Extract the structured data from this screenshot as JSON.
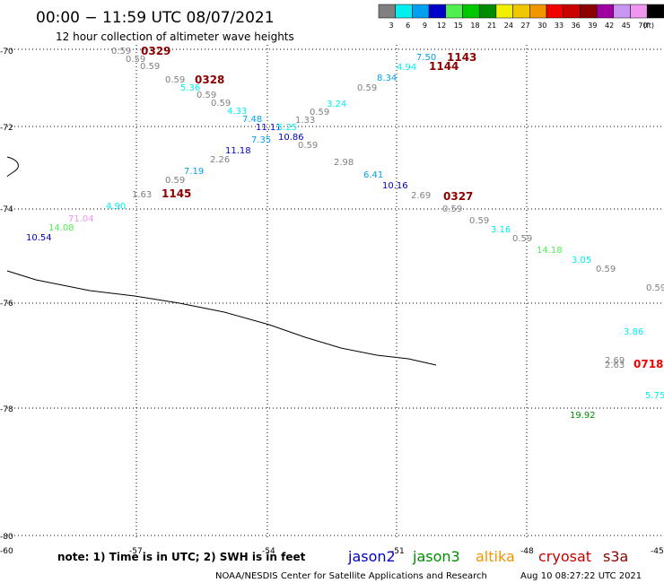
{
  "header": {
    "title": "00:00 − 11:59 UTC 08/07/2021",
    "subtitle": "12 hour collection of altimeter wave heights"
  },
  "legend": {
    "bins": [
      {
        "label": "3",
        "color": "#808080"
      },
      {
        "label": "6",
        "color": "#00f0f0"
      },
      {
        "label": "9",
        "color": "#00a0f0"
      },
      {
        "label": "12",
        "color": "#0000c8"
      },
      {
        "label": "15",
        "color": "#50f050"
      },
      {
        "label": "18",
        "color": "#00c800"
      },
      {
        "label": "21",
        "color": "#008c00"
      },
      {
        "label": "24",
        "color": "#f0f000"
      },
      {
        "label": "27",
        "color": "#f0c800"
      },
      {
        "label": "30",
        "color": "#f09600"
      },
      {
        "label": "33",
        "color": "#f00000"
      },
      {
        "label": "36",
        "color": "#c80000"
      },
      {
        "label": "39",
        "color": "#8c0000"
      },
      {
        "label": "42",
        "color": "#a000a0"
      },
      {
        "label": "45",
        "color": "#c896f0"
      },
      {
        "label": "70",
        "color": "#f096f0"
      },
      {
        "label": "",
        "color": "#000000"
      }
    ],
    "unit": "(ft)"
  },
  "chart_data": {
    "type": "scatter",
    "title": "00:00 − 11:59 UTC 08/07/2021",
    "subtitle": "12 hour collection of altimeter wave heights",
    "y_ticks": [
      "-70",
      "-72",
      "-74",
      "-76",
      "-78",
      "-80"
    ],
    "x_ticks": [
      "-60",
      "-57",
      "-54",
      "-51",
      "-48",
      "-45"
    ],
    "grid": true,
    "points": [
      {
        "v": "0.59",
        "c": "#808080"
      },
      {
        "v": "0.59",
        "c": "#808080"
      },
      {
        "v": "0.59",
        "c": "#808080"
      },
      {
        "v": "0.59",
        "c": "#808080"
      },
      {
        "v": "5.36",
        "c": "#00f0f0"
      },
      {
        "v": "0.59",
        "c": "#808080"
      },
      {
        "v": "0.59",
        "c": "#808080"
      },
      {
        "v": "4.33",
        "c": "#00f0f0"
      },
      {
        "v": "7.48",
        "c": "#00a0f0"
      },
      {
        "v": "11.11",
        "c": "#0000c8"
      },
      {
        "v": "5.25",
        "c": "#00f0f0"
      },
      {
        "v": "1.33",
        "c": "#808080"
      },
      {
        "v": "10.86",
        "c": "#0000c8"
      },
      {
        "v": "0.59",
        "c": "#808080"
      },
      {
        "v": "2.98",
        "c": "#808080"
      },
      {
        "v": "6.41",
        "c": "#00a0f0"
      },
      {
        "v": "10.16",
        "c": "#0000c8"
      },
      {
        "v": "2.69",
        "c": "#808080"
      },
      {
        "v": "0.59",
        "c": "#808080"
      },
      {
        "v": "0.59",
        "c": "#808080"
      },
      {
        "v": "3.16",
        "c": "#00f0f0"
      },
      {
        "v": "0.59",
        "c": "#808080"
      },
      {
        "v": "14.18",
        "c": "#50f050"
      },
      {
        "v": "3.05",
        "c": "#00f0f0"
      },
      {
        "v": "0.59",
        "c": "#808080"
      },
      {
        "v": "0.59",
        "c": "#808080"
      },
      {
        "v": "7.50",
        "c": "#00a0f0"
      },
      {
        "v": "4.94",
        "c": "#00f0f0"
      },
      {
        "v": "8.34",
        "c": "#00a0f0"
      },
      {
        "v": "0.59",
        "c": "#808080"
      },
      {
        "v": "3.24",
        "c": "#00f0f0"
      },
      {
        "v": "0.59",
        "c": "#808080"
      },
      {
        "v": "7.35",
        "c": "#00a0f0"
      },
      {
        "v": "11.18",
        "c": "#0000c8"
      },
      {
        "v": "2.26",
        "c": "#808080"
      },
      {
        "v": "7.19",
        "c": "#00a0f0"
      },
      {
        "v": "0.59",
        "c": "#808080"
      },
      {
        "v": "1.63",
        "c": "#808080"
      },
      {
        "v": "4.90",
        "c": "#00f0f0"
      },
      {
        "v": "71.04",
        "c": "#f096f0"
      },
      {
        "v": "14.08",
        "c": "#50f050"
      },
      {
        "v": "10.54",
        "c": "#0000c8"
      },
      {
        "v": "3.86",
        "c": "#00f0f0"
      },
      {
        "v": "2.69",
        "c": "#808080"
      },
      {
        "v": "2.63",
        "c": "#808080"
      },
      {
        "v": "5.75",
        "c": "#00f0f0"
      },
      {
        "v": "19.92",
        "c": "#008c00"
      }
    ],
    "pass_labels": [
      {
        "t": "0329",
        "c": "#8c0000"
      },
      {
        "t": "0328",
        "c": "#8c0000"
      },
      {
        "t": "1143",
        "c": "#8c0000"
      },
      {
        "t": "1144",
        "c": "#8c0000"
      },
      {
        "t": "1145",
        "c": "#8c0000"
      },
      {
        "t": "0327",
        "c": "#8c0000"
      },
      {
        "t": "0718",
        "c": "#f00000"
      }
    ]
  },
  "footer": {
    "note": "note: 1) Time is in UTC; 2) SWH is in feet",
    "satellites": [
      {
        "name": "jason2",
        "color": "#0000c8"
      },
      {
        "name": "jason3",
        "color": "#008c00"
      },
      {
        "name": "altika",
        "color": "#f09600"
      },
      {
        "name": "cryosat",
        "color": "#c80000"
      },
      {
        "name": "s3a",
        "color": "#8c0000"
      }
    ],
    "credit": "NOAA/NESDIS Center for Satellite Applications and Research",
    "timestamp": "Aug 10 08:27:22 UTC 2021"
  }
}
